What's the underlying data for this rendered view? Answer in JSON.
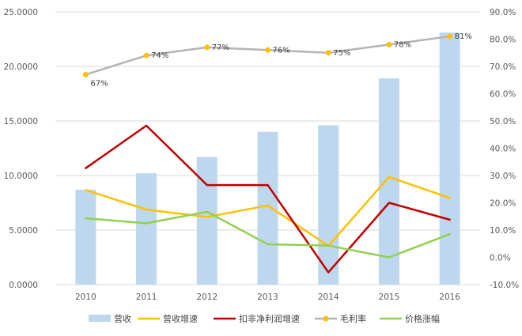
{
  "chart_data": {
    "type": "combo",
    "categories": [
      "2010",
      "2011",
      "2012",
      "2013",
      "2014",
      "2015",
      "2016"
    ],
    "y_left": {
      "range": [
        0,
        25
      ],
      "ticks": [
        "0.0000",
        "5.0000",
        "10.0000",
        "15.0000",
        "20.0000",
        "25.0000"
      ]
    },
    "y_right": {
      "range": [
        -10,
        90
      ],
      "ticks": [
        "-10.0%",
        "0.0%",
        "10.0%",
        "20.0%",
        "30.0%",
        "40.0%",
        "50.0%",
        "60.0%",
        "70.0%",
        "80.0%",
        "90.0%"
      ]
    },
    "grid": "horizontal",
    "legend_position": "bottom",
    "series": [
      {
        "name": "营收",
        "type": "bar",
        "axis": "left",
        "color": "#bdd7ee",
        "values": [
          8.7,
          10.2,
          11.7,
          14.0,
          14.6,
          18.9,
          23.1
        ]
      },
      {
        "name": "营收增速",
        "type": "line",
        "axis": "right",
        "color": "#ffc000",
        "values": [
          24.7,
          17.5,
          14.8,
          19.0,
          4.2,
          29.5,
          21.8
        ]
      },
      {
        "name": "扣非净利润增速",
        "type": "line",
        "axis": "right",
        "color": "#c00000",
        "values": [
          32.7,
          48.3,
          26.5,
          26.5,
          -5.5,
          20.0,
          13.8
        ]
      },
      {
        "name": "毛利率",
        "type": "line",
        "axis": "right",
        "color": "#b4b4b4",
        "marker_color": "#ffc000",
        "values": [
          67,
          74,
          77,
          76,
          75,
          78,
          81
        ],
        "data_labels": [
          "67%",
          "74%",
          "77%",
          "76%",
          "75%",
          "78%",
          "81%"
        ]
      },
      {
        "name": "价格涨幅",
        "type": "line",
        "axis": "right",
        "color": "#92d050",
        "values": [
          14.3,
          12.5,
          16.7,
          4.8,
          4.3,
          0.0,
          8.5
        ]
      }
    ]
  }
}
